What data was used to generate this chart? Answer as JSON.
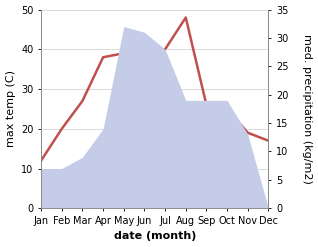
{
  "months": [
    "Jan",
    "Feb",
    "Mar",
    "Apr",
    "May",
    "Jun",
    "Jul",
    "Aug",
    "Sep",
    "Oct",
    "Nov",
    "Dec"
  ],
  "temperature": [
    12,
    20,
    27,
    38,
    39,
    39,
    40,
    48,
    26,
    25,
    19,
    17
  ],
  "precipitation": [
    7,
    7,
    9,
    14,
    32,
    31,
    28,
    19,
    19,
    19,
    13,
    0
  ],
  "temp_color": "#c0504d",
  "precip_fill_color": "#c5cce8",
  "left_ylim": [
    0,
    50
  ],
  "right_ylim": [
    0,
    35
  ],
  "left_yticks": [
    0,
    10,
    20,
    30,
    40,
    50
  ],
  "right_yticks": [
    0,
    5,
    10,
    15,
    20,
    25,
    30,
    35
  ],
  "xlabel": "date (month)",
  "ylabel_left": "max temp (C)",
  "ylabel_right": "med. precipitation (kg/m2)",
  "axis_fontsize": 8,
  "tick_fontsize": 7,
  "line_width": 1.8,
  "background_color": "#ffffff"
}
